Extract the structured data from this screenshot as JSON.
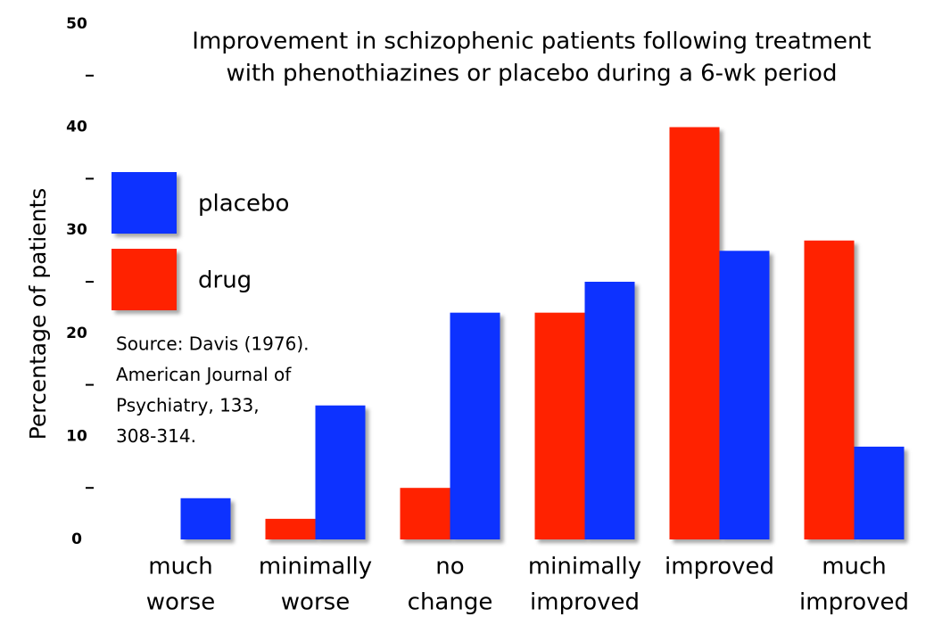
{
  "chart_data": {
    "type": "bar",
    "title": [
      "Improvement in schizophenic patients following treatment",
      "with phenothiazines or placebo during a 6-wk period"
    ],
    "y_label": "Percentage of patients",
    "annotation": [
      "Source: Davis (1976).",
      "American Journal of",
      "Psychiatry, 133,",
      "308-314."
    ],
    "categories": [
      [
        "much",
        "worse"
      ],
      [
        "minimally",
        "worse"
      ],
      [
        "no",
        "change"
      ],
      [
        "minimally",
        "improved"
      ],
      [
        "improved"
      ],
      [
        "much",
        "improved"
      ]
    ],
    "series": [
      {
        "name": "drug",
        "color": "#ff2200",
        "values": [
          0,
          2,
          5,
          22,
          40,
          29
        ]
      },
      {
        "name": "placebo",
        "color": "#1030ff",
        "values": [
          4,
          13,
          22,
          25,
          28,
          9
        ]
      }
    ],
    "ylim": [
      0,
      50
    ],
    "yticks": [
      0,
      10,
      20,
      30,
      40,
      50
    ],
    "yminor_ticks": [
      5,
      15,
      25,
      35,
      45
    ],
    "legend_order": [
      1,
      0
    ]
  }
}
